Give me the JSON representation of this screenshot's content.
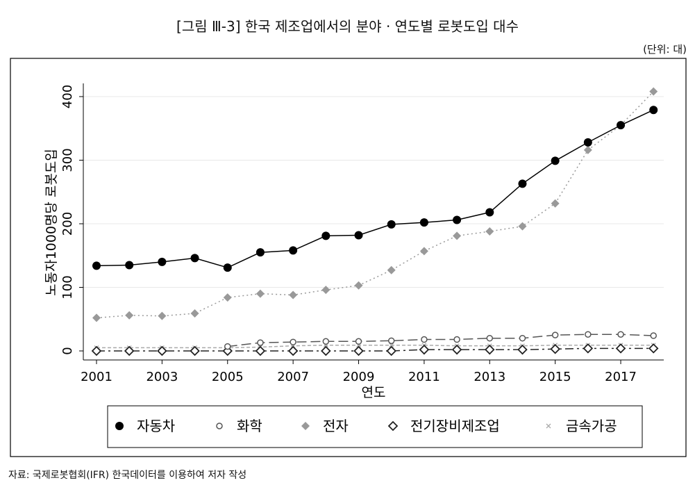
{
  "chart_data": {
    "type": "line",
    "title": "[그림 Ⅲ-3] 한국 제조업에서의 분야 · 연도별 로봇도입 대수",
    "unit": "(단위: 대)",
    "source": "자료: 국제로봇협회(IFR) 한국데이터를 이용하여 저자 작성",
    "xlabel": "연도",
    "ylabel": "노동자1000명당 로봇도입",
    "x": [
      2001,
      2002,
      2003,
      2004,
      2005,
      2006,
      2007,
      2008,
      2009,
      2010,
      2011,
      2012,
      2013,
      2014,
      2015,
      2016,
      2017,
      2018
    ],
    "xticks": [
      "2001",
      "2003",
      "2005",
      "2007",
      "2009",
      "2011",
      "2013",
      "2015",
      "2017"
    ],
    "yticks": [
      "0",
      "100",
      "200",
      "300",
      "400"
    ],
    "ylim": [
      0,
      400
    ],
    "grid": true,
    "legend_position": "bottom",
    "series": [
      {
        "name": "자동차",
        "marker": "filled-circle",
        "color": "#000000",
        "values": [
          134,
          135,
          140,
          146,
          131,
          155,
          158,
          181,
          182,
          199,
          202,
          206,
          218,
          263,
          299,
          328,
          355,
          379
        ]
      },
      {
        "name": "화학",
        "marker": "hollow-circle",
        "color": "#555555",
        "values": [
          null,
          null,
          null,
          null,
          7,
          13,
          14,
          15,
          15,
          16,
          18,
          18,
          20,
          20,
          25,
          26,
          26,
          24
        ]
      },
      {
        "name": "전자",
        "marker": "diamond",
        "color": "#999999",
        "values": [
          52,
          56,
          55,
          59,
          84,
          90,
          88,
          96,
          103,
          127,
          157,
          181,
          188,
          196,
          232,
          316,
          355,
          408
        ]
      },
      {
        "name": "전기장비제조업",
        "marker": "hollow-diamond",
        "color": "#222222",
        "values": [
          0,
          0,
          0,
          0,
          0,
          0,
          0,
          0,
          0,
          0,
          2,
          2,
          2,
          2,
          3,
          4,
          4,
          4
        ]
      },
      {
        "name": "금속가공",
        "marker": "x",
        "color": "#aaaaaa",
        "values": [
          5,
          5,
          5,
          5,
          5,
          6,
          8,
          9,
          9,
          9,
          9,
          8,
          8,
          8,
          9,
          9,
          9,
          9
        ]
      }
    ]
  }
}
